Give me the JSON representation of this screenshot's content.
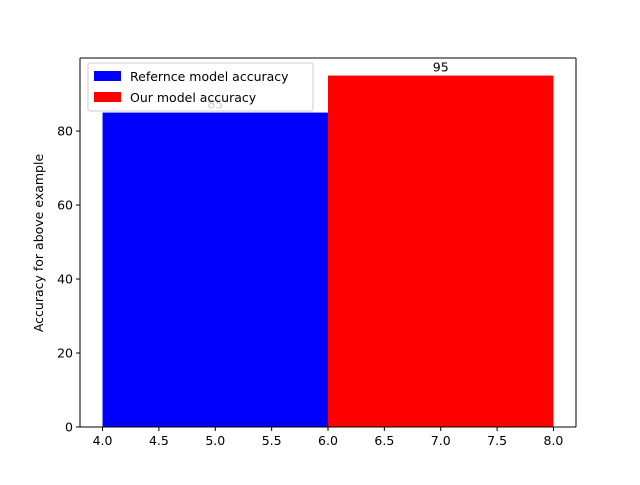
{
  "chart_data": {
    "type": "bar",
    "title": "",
    "xlabel": "",
    "ylabel": "Accuracy for above example",
    "xlim": [
      3.8,
      8.2
    ],
    "ylim": [
      0,
      99.75
    ],
    "x_ticks": [
      4.0,
      4.5,
      5.0,
      5.5,
      6.0,
      6.5,
      7.0,
      7.5,
      8.0
    ],
    "x_tick_labels": [
      "4.0",
      "4.5",
      "5.0",
      "5.5",
      "6.0",
      "6.5",
      "7.0",
      "7.5",
      "8.0"
    ],
    "y_ticks": [
      0,
      20,
      40,
      60,
      80
    ],
    "y_tick_labels": [
      "0",
      "20",
      "40",
      "60",
      "80"
    ],
    "grid": false,
    "legend_position": "top-left",
    "series": [
      {
        "name": "Refernce model accuracy",
        "x_start": 4.0,
        "x_end": 6.0,
        "value": 85,
        "label": "85",
        "color": "#0000ff"
      },
      {
        "name": "Our model accuracy",
        "x_start": 6.0,
        "x_end": 8.0,
        "value": 95,
        "label": "95",
        "color": "#ff0000"
      }
    ]
  }
}
